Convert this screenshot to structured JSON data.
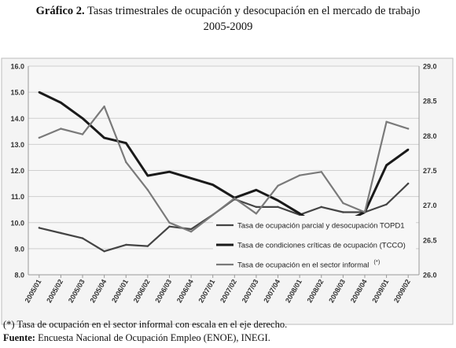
{
  "header": {
    "label": "Gráfico 2.",
    "text": "Tasas trimestrales de ocupación y desocupación en el mercado de trabajo",
    "years": "2005-2009"
  },
  "chart_data": {
    "type": "line",
    "categories": [
      "2005/01",
      "2005/02",
      "2005/03",
      "2005/04",
      "2006/01",
      "2006/02",
      "2006/03",
      "2006/04",
      "2007/01",
      "2007/02",
      "2007/03",
      "2007/04",
      "2008/01",
      "2008/02",
      "2008/03",
      "2008/04",
      "2009/01",
      "2009/02"
    ],
    "ylim_left": [
      8.0,
      16.0
    ],
    "yticks_left": [
      "8.0",
      "9.0",
      "10.0",
      "11.0",
      "12.0",
      "13.0",
      "14.0",
      "15.0",
      "16.0"
    ],
    "ylim_right": [
      26.0,
      29.0
    ],
    "yticks_right": [
      "26.0",
      "26.5",
      "27.0",
      "27.5",
      "28.0",
      "28.5",
      "29.0"
    ],
    "grid": true,
    "legend_position": "bottom-right",
    "series": [
      {
        "name": "Tasa de ocupación parcial y desocupación TOPD1",
        "axis": "left",
        "color": "#444444",
        "values": [
          9.8,
          9.6,
          9.4,
          8.9,
          9.15,
          9.1,
          9.85,
          9.75,
          10.3,
          10.9,
          10.6,
          10.6,
          10.3,
          10.6,
          10.4,
          10.4,
          10.7,
          11.5
        ]
      },
      {
        "name": "Tasa de condiciones críticas de ocupación (TCCO)",
        "axis": "left",
        "color": "#1a1a1a",
        "values": [
          15.0,
          14.6,
          14.0,
          13.25,
          13.05,
          11.8,
          11.95,
          11.7,
          11.45,
          10.95,
          11.25,
          10.85,
          10.35,
          9.8,
          10.0,
          10.4,
          12.2,
          12.8
        ]
      },
      {
        "name": "Tasa de ocupación en el sector informal",
        "axis": "right",
        "color": "#7a7a7a",
        "name_mark": "(*)",
        "values": [
          27.97,
          28.1,
          28.02,
          28.42,
          27.62,
          27.22,
          26.75,
          26.62,
          26.86,
          27.1,
          26.88,
          27.28,
          27.43,
          27.48,
          27.03,
          26.9,
          28.2,
          28.1
        ]
      }
    ]
  },
  "footnotes": {
    "note_mark": "(*)",
    "note_text": " Tasa de ocupación en el sector informal con escala en el eje derecho.",
    "source_label": "Fuente:",
    "source_text": " Encuesta Nacional de Ocupación Empleo (ENOE), INEGI."
  }
}
